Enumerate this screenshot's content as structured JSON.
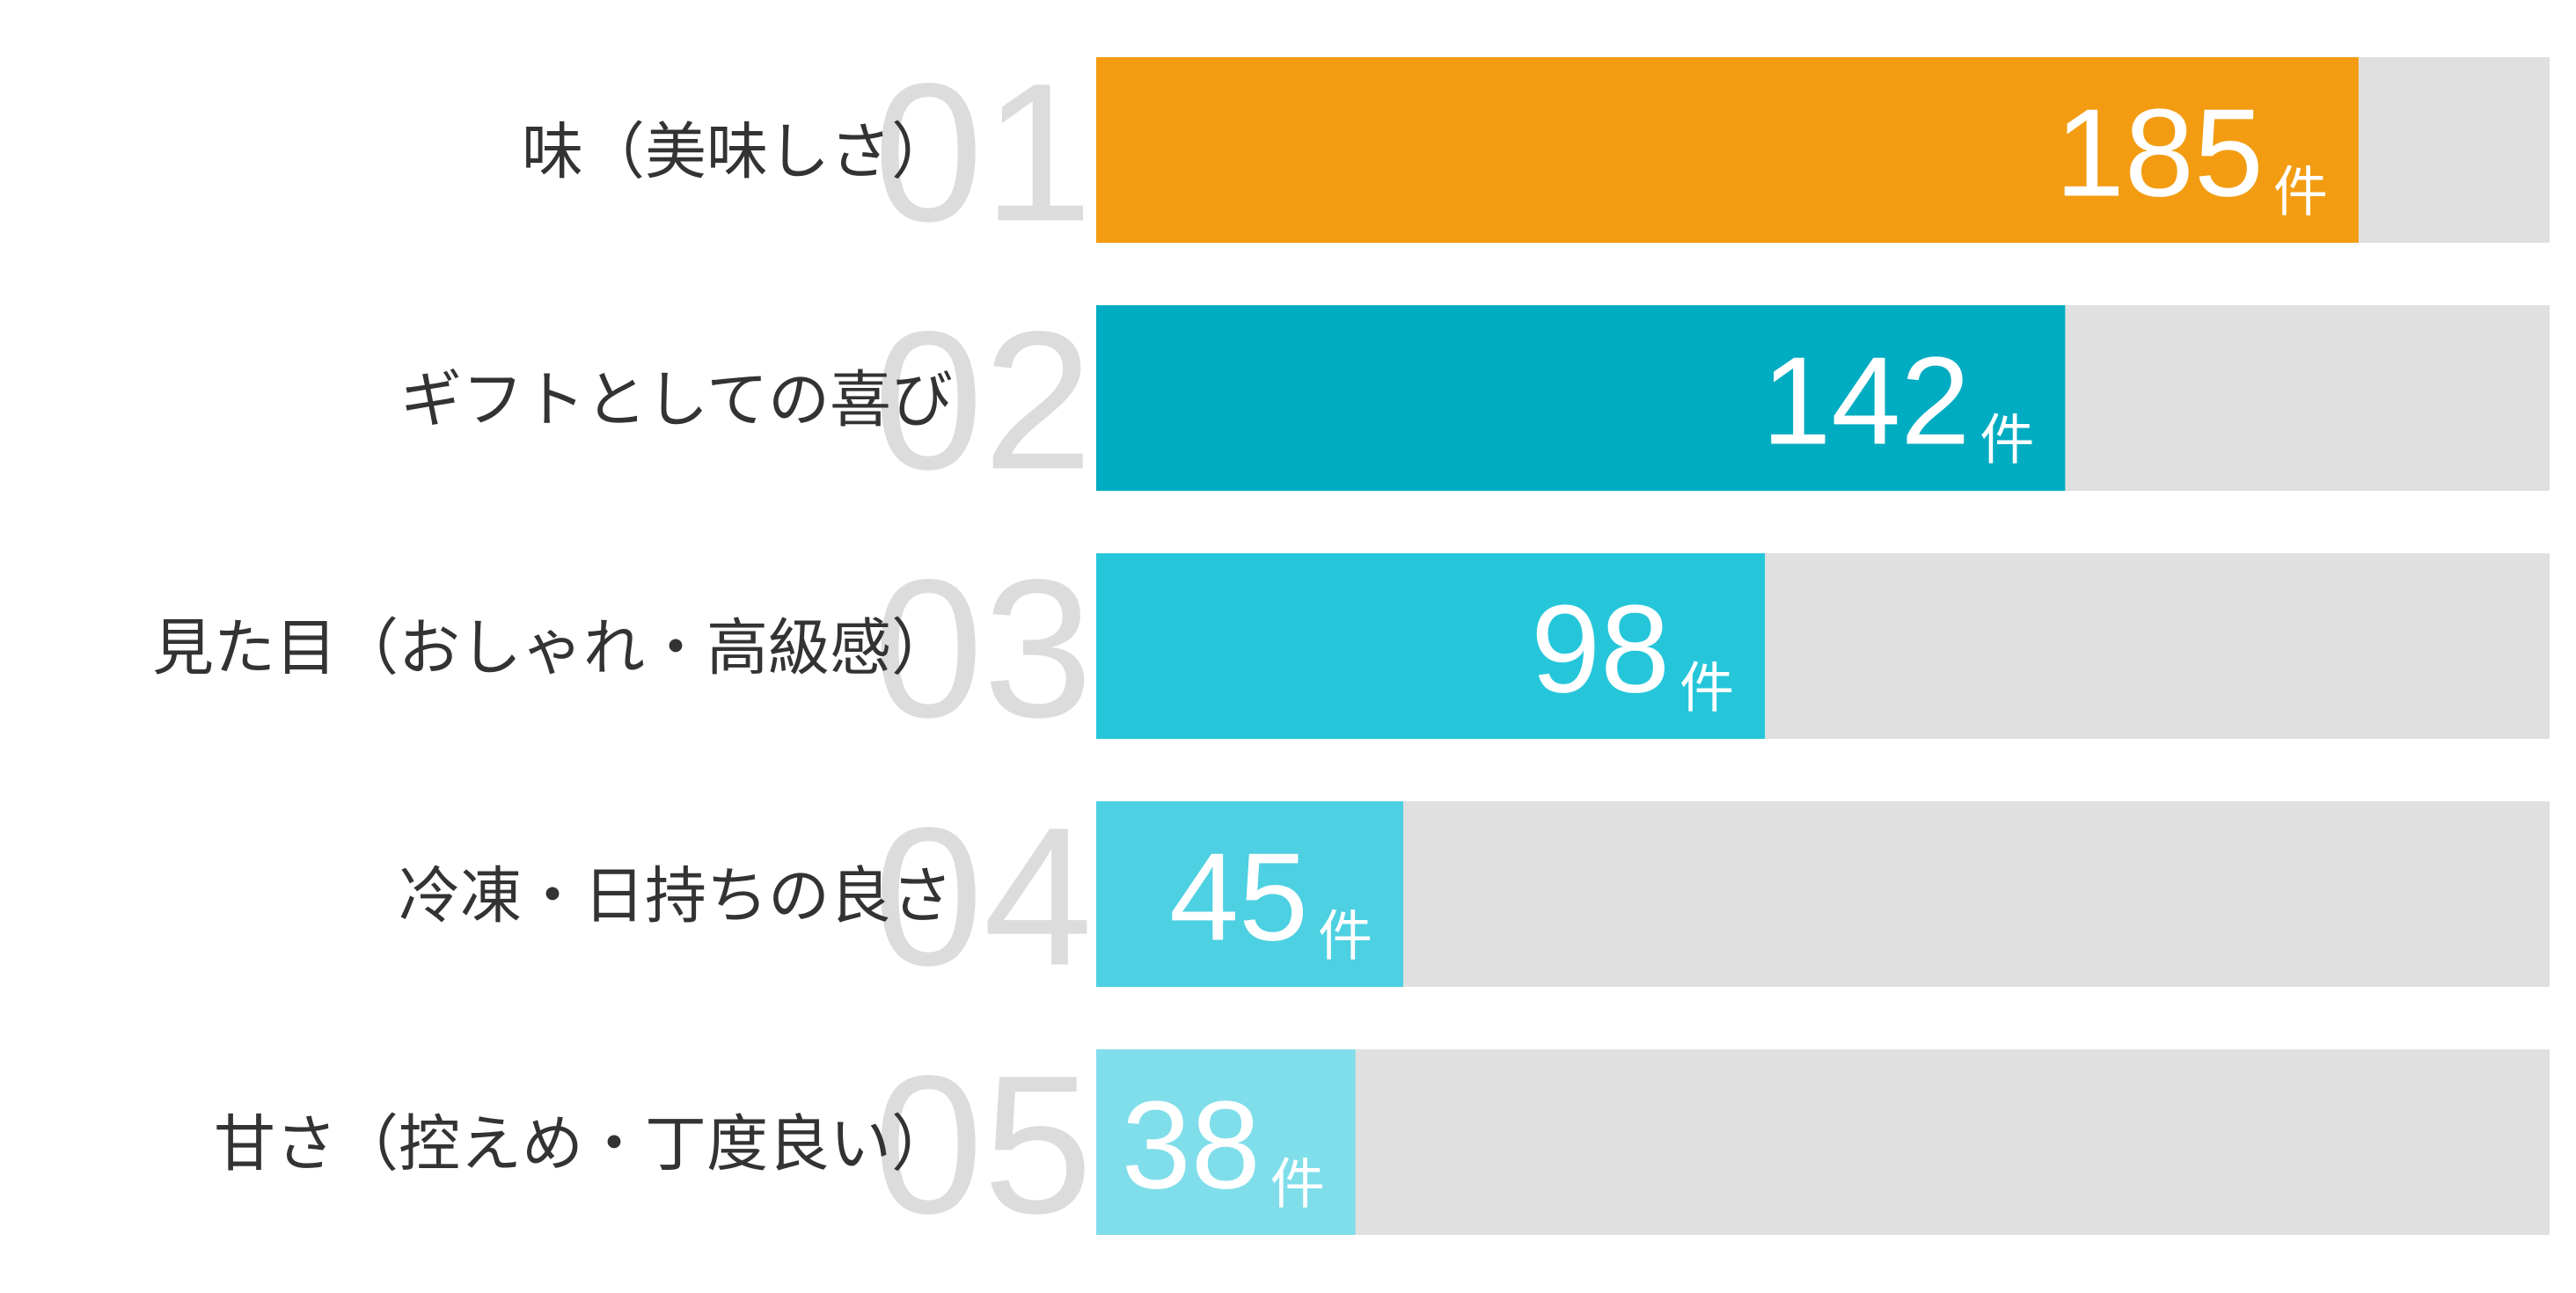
{
  "chart_data": {
    "type": "bar",
    "orientation": "horizontal",
    "categories": [
      "味（美味しさ）",
      "ギフトとしての喜び",
      "見た目（おしゃれ・高級感）",
      "冷凍・日持ちの良さ",
      "甘さ（控えめ・丁度良い）"
    ],
    "ranks": [
      "01",
      "02",
      "03",
      "04",
      "05"
    ],
    "values": [
      185,
      142,
      98,
      45,
      38
    ],
    "unit": "件",
    "colors": [
      "#f39c12",
      "#00acc1",
      "#26c6da",
      "#4dd0e1",
      "#80deea"
    ],
    "track_color": "#e0e0e0",
    "xlim": [
      0,
      213
    ]
  }
}
